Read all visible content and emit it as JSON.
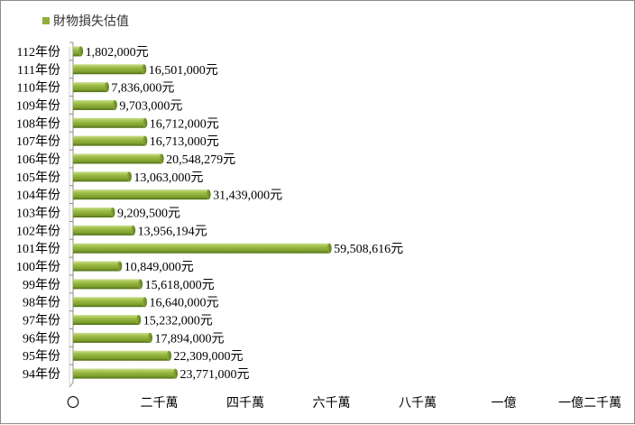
{
  "chart_data": {
    "type": "bar",
    "orientation": "horizontal",
    "series": [
      {
        "name": "財物損失估值",
        "color": "#8fb13a"
      }
    ],
    "categories": [
      "112年份",
      "111年份",
      "110年份",
      "109年份",
      "108年份",
      "107年份",
      "106年份",
      "105年份",
      "104年份",
      "103年份",
      "102年份",
      "101年份",
      "100年份",
      "99年份",
      "98年份",
      "97年份",
      "96年份",
      "95年份",
      "94年份"
    ],
    "values": [
      1802000,
      16501000,
      7836000,
      9703000,
      16712000,
      16713000,
      20548279,
      13063000,
      31439000,
      9209500,
      13956194,
      59508616,
      10849000,
      15618000,
      16640000,
      15232000,
      17894000,
      22309000,
      23771000
    ],
    "data_labels": [
      "1,802,000元",
      "16,501,000元",
      "7,836,000元",
      "9,703,000元",
      "16,712,000元",
      "16,713,000元",
      "20,548,279元",
      "13,063,000元",
      "31,439,000元",
      "9,209,500元",
      "13,956,194元",
      "59,508,616元",
      "10,849,000元",
      "15,618,000元",
      "16,640,000元",
      "15,232,000元",
      "17,894,000元",
      "22,309,000元",
      "23,771,000元"
    ],
    "xlim": [
      0,
      120000000
    ],
    "x_ticks": [
      {
        "value": 0,
        "label": "〇"
      },
      {
        "value": 20000000,
        "label": "二千萬"
      },
      {
        "value": 40000000,
        "label": "四千萬"
      },
      {
        "value": 60000000,
        "label": "六千萬"
      },
      {
        "value": 80000000,
        "label": "八千萬"
      },
      {
        "value": 100000000,
        "label": "一億"
      },
      {
        "value": 120000000,
        "label": "一億二千萬"
      }
    ],
    "legend_position": "top-left",
    "grid": false
  }
}
